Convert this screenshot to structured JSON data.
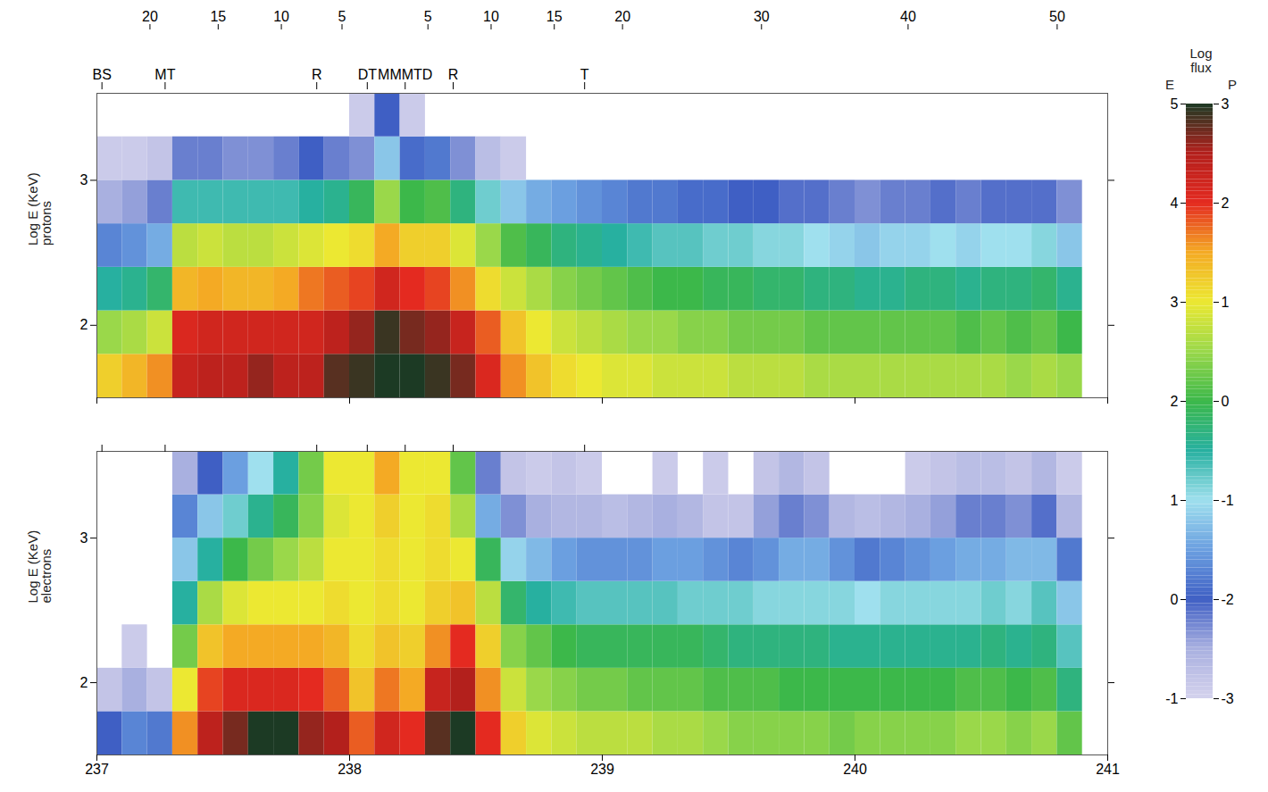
{
  "chart_data": [
    {
      "type": "heatmap",
      "ylabel": "Log E (KeV)",
      "species": "protons",
      "color_scale": "P",
      "xlim": [
        237,
        241
      ],
      "xticks": [
        237,
        238,
        239,
        240,
        241
      ],
      "tick_labels": "y",
      "ylim": [
        1.5,
        3.6
      ],
      "yticks": [
        2,
        3
      ],
      "x_bins": [
        237,
        237.1,
        237.2,
        237.3,
        237.4,
        237.5,
        237.6,
        237.7,
        237.8,
        237.9,
        238,
        238.1,
        238.2,
        238.3,
        238.4,
        238.5,
        238.6,
        238.7,
        238.8,
        238.9,
        239,
        239.1,
        239.2,
        239.3,
        239.4,
        239.5,
        239.6,
        239.7,
        239.8,
        239.9,
        240,
        240.1,
        240.2,
        240.3,
        240.4,
        240.5,
        240.6,
        240.7,
        240.8,
        240.9,
        241
      ],
      "y_bins": [
        1.5,
        1.8,
        2.1,
        2.4,
        2.7,
        3.0,
        3.3,
        3.6
      ],
      "cells": [
        [
          1.2,
          1.4,
          1.6,
          2.3,
          2.4,
          2.4,
          2.6,
          2.4,
          2.4,
          2.8,
          2.9,
          3.0,
          3.0,
          2.9,
          2.7,
          2.1,
          1.6,
          1.3,
          1.1,
          1.0,
          0.9,
          0.9,
          0.8,
          0.8,
          0.8,
          0.7,
          0.7,
          0.7,
          0.6,
          0.6,
          0.6,
          0.6,
          0.6,
          0.6,
          0.6,
          0.6,
          0.5,
          0.6,
          0.5,
          null
        ],
        [
          0.5,
          0.6,
          0.8,
          2.1,
          2.2,
          2.2,
          2.2,
          2.2,
          2.2,
          2.4,
          2.6,
          2.9,
          2.7,
          2.6,
          2.3,
          1.8,
          1.3,
          1.0,
          0.8,
          0.7,
          0.6,
          0.5,
          0.5,
          0.4,
          0.4,
          0.3,
          0.3,
          0.3,
          0.2,
          0.2,
          0.2,
          0.2,
          0.2,
          0.2,
          0.1,
          0.2,
          0.1,
          0.2,
          0.0,
          null
        ],
        [
          -0.5,
          -0.4,
          -0.2,
          1.4,
          1.5,
          1.4,
          1.4,
          1.5,
          1.7,
          1.8,
          1.9,
          2.2,
          2.0,
          1.9,
          1.6,
          1.1,
          0.8,
          0.6,
          0.4,
          0.3,
          0.2,
          0.1,
          0.0,
          0.0,
          -0.1,
          -0.1,
          -0.2,
          -0.2,
          -0.3,
          -0.3,
          -0.4,
          -0.4,
          -0.3,
          -0.3,
          -0.4,
          -0.3,
          -0.3,
          -0.2,
          -0.4,
          null
        ],
        [
          -1.7,
          -1.6,
          -1.4,
          0.7,
          0.8,
          0.7,
          0.7,
          0.8,
          0.9,
          1.0,
          1.1,
          1.5,
          1.2,
          1.2,
          0.9,
          0.5,
          0.1,
          -0.1,
          -0.3,
          -0.4,
          -0.5,
          -0.6,
          -0.7,
          -0.7,
          -0.8,
          -0.8,
          -0.9,
          -0.9,
          -1.0,
          -1.1,
          -1.2,
          -1.1,
          -1.1,
          -1.0,
          -1.1,
          -1.0,
          -1.0,
          -0.9,
          -1.2,
          null
        ],
        [
          -2.5,
          -2.4,
          -2.2,
          -0.6,
          -0.6,
          -0.6,
          -0.6,
          -0.6,
          -0.5,
          -0.4,
          -0.1,
          0.5,
          0.0,
          0.1,
          -0.3,
          -0.8,
          -1.2,
          -1.4,
          -1.5,
          -1.6,
          -1.7,
          -1.8,
          -1.8,
          -1.9,
          -1.9,
          -2.0,
          -2.0,
          -2.1,
          -2.1,
          -2.2,
          -2.3,
          -2.2,
          -2.2,
          -2.1,
          -2.2,
          -2.1,
          -2.1,
          -2.1,
          -2.3,
          null
        ],
        [
          -2.9,
          -2.9,
          -2.8,
          -2.2,
          -2.2,
          -2.3,
          -2.3,
          -2.2,
          -2.0,
          -2.2,
          -2.3,
          -1.2,
          -1.9,
          -1.8,
          -2.3,
          -2.7,
          -2.9,
          null,
          null,
          null,
          null,
          null,
          null,
          null,
          null,
          null,
          null,
          null,
          null,
          null,
          null,
          null,
          null,
          null,
          null,
          null,
          null,
          null,
          null,
          null
        ],
        [
          null,
          null,
          null,
          null,
          null,
          null,
          null,
          null,
          null,
          null,
          -2.9,
          -2.0,
          -2.9,
          null,
          null,
          null,
          null,
          null,
          null,
          null,
          null,
          null,
          null,
          null,
          null,
          null,
          null,
          null,
          null,
          null,
          null,
          null,
          null,
          null,
          null,
          null,
          null,
          null,
          null,
          null
        ]
      ]
    },
    {
      "type": "heatmap",
      "ylabel": "Log E (KeV)",
      "species": "electrons",
      "color_scale": "E",
      "xlim": [
        237,
        241
      ],
      "xticks": [
        237,
        238,
        239,
        240,
        241
      ],
      "ylim": [
        1.5,
        3.6
      ],
      "yticks": [
        2,
        3
      ],
      "x_bins": [
        237,
        237.1,
        237.2,
        237.3,
        237.4,
        237.5,
        237.6,
        237.7,
        237.8,
        237.9,
        238,
        238.1,
        238.2,
        238.3,
        238.4,
        238.5,
        238.6,
        238.7,
        238.8,
        238.9,
        239,
        239.1,
        239.2,
        239.3,
        239.4,
        239.5,
        239.6,
        239.7,
        239.8,
        239.9,
        240,
        240.1,
        240.2,
        240.3,
        240.4,
        240.5,
        240.6,
        240.7,
        240.8,
        240.9,
        241
      ],
      "y_bins": [
        1.5,
        1.8,
        2.1,
        2.4,
        2.7,
        3.0,
        3.3,
        3.6
      ],
      "cells": [
        [
          0.0,
          0.3,
          0.2,
          3.6,
          4.4,
          4.7,
          5.0,
          5.0,
          4.6,
          4.5,
          3.8,
          4.2,
          4.0,
          4.8,
          5.0,
          4.0,
          3.2,
          2.9,
          2.8,
          2.7,
          2.7,
          2.7,
          2.6,
          2.6,
          2.5,
          2.4,
          2.4,
          2.4,
          2.4,
          2.3,
          2.4,
          2.4,
          2.4,
          2.4,
          2.5,
          2.5,
          2.4,
          2.5,
          2.2,
          null
        ],
        [
          -0.8,
          -0.5,
          -0.8,
          3.0,
          3.9,
          4.1,
          4.1,
          4.1,
          4.0,
          3.8,
          3.3,
          3.7,
          3.5,
          4.3,
          4.5,
          3.6,
          2.8,
          2.5,
          2.4,
          2.3,
          2.3,
          2.2,
          2.2,
          2.2,
          2.1,
          2.1,
          2.1,
          2.0,
          2.0,
          2.0,
          2.0,
          2.0,
          2.0,
          2.0,
          2.1,
          2.1,
          2.0,
          2.1,
          1.7,
          null
        ],
        [
          null,
          -0.9,
          null,
          2.3,
          3.3,
          3.5,
          3.5,
          3.5,
          3.5,
          3.4,
          3.1,
          3.3,
          3.2,
          3.6,
          4.0,
          3.2,
          2.4,
          2.2,
          2.0,
          1.9,
          1.9,
          1.9,
          1.9,
          1.9,
          1.8,
          1.7,
          1.7,
          1.7,
          1.7,
          1.6,
          1.6,
          1.6,
          1.6,
          1.6,
          1.6,
          1.7,
          1.6,
          1.7,
          1.3,
          null
        ],
        [
          null,
          null,
          null,
          1.5,
          2.6,
          2.9,
          3.0,
          3.0,
          3.0,
          3.1,
          3.0,
          3.1,
          3.0,
          3.2,
          3.3,
          2.7,
          1.8,
          1.5,
          1.4,
          1.3,
          1.3,
          1.3,
          1.3,
          1.2,
          1.2,
          1.2,
          1.1,
          1.1,
          1.1,
          1.1,
          1.0,
          1.1,
          1.1,
          1.1,
          1.1,
          1.2,
          1.1,
          1.3,
          0.8,
          null
        ],
        [
          null,
          null,
          null,
          0.8,
          1.5,
          2.0,
          2.3,
          2.5,
          2.7,
          3.0,
          3.0,
          3.1,
          3.0,
          3.1,
          3.0,
          1.9,
          0.9,
          0.7,
          0.5,
          0.4,
          0.4,
          0.4,
          0.5,
          0.5,
          0.4,
          0.3,
          0.4,
          0.6,
          0.6,
          0.4,
          0.2,
          0.3,
          0.4,
          0.5,
          0.6,
          0.6,
          0.7,
          0.7,
          0.2,
          null
        ],
        [
          null,
          null,
          null,
          0.3,
          0.8,
          1.2,
          1.6,
          1.9,
          2.4,
          2.9,
          3.0,
          3.2,
          3.0,
          3.1,
          2.6,
          0.6,
          -0.3,
          -0.5,
          -0.6,
          -0.6,
          -0.7,
          -0.6,
          -0.5,
          -0.6,
          -0.8,
          -0.8,
          -0.4,
          -0.2,
          -0.3,
          -0.6,
          -0.7,
          -0.6,
          -0.5,
          -0.4,
          -0.2,
          -0.2,
          -0.3,
          -0.1,
          -0.6,
          null
        ],
        [
          null,
          null,
          null,
          -0.5,
          0.0,
          0.5,
          1.0,
          1.5,
          2.3,
          3.0,
          3.0,
          3.5,
          3.0,
          3.0,
          2.2,
          -0.2,
          -0.8,
          -0.9,
          -0.8,
          -0.9,
          null,
          null,
          -0.9,
          null,
          -0.9,
          null,
          -0.8,
          -0.6,
          -0.8,
          null,
          null,
          null,
          -0.9,
          -0.8,
          -0.7,
          -0.7,
          -0.8,
          -0.6,
          -0.9,
          null
        ]
      ]
    }
  ],
  "distance_ticks": [
    {
      "value": 237.21,
      "label": "20"
    },
    {
      "value": 237.48,
      "label": "15"
    },
    {
      "value": 237.73,
      "label": "10"
    },
    {
      "value": 237.97,
      "label": "5"
    },
    {
      "value": 238.31,
      "label": "5"
    },
    {
      "value": 238.56,
      "label": "10"
    },
    {
      "value": 238.81,
      "label": "15"
    },
    {
      "value": 239.08,
      "label": "20"
    },
    {
      "value": 239.63,
      "label": "30"
    },
    {
      "value": 240.21,
      "label": "40"
    },
    {
      "value": 240.8,
      "label": "50"
    }
  ],
  "region_ticks": [
    {
      "value": 237.02,
      "label": "BS"
    },
    {
      "value": 237.27,
      "label": "MT"
    },
    {
      "value": 237.87,
      "label": "R"
    },
    {
      "value": 238.07,
      "label": "DT"
    },
    {
      "value": 238.22,
      "label": "MMMTD"
    },
    {
      "value": 238.41,
      "label": "R"
    },
    {
      "value": 238.93,
      "label": "T"
    }
  ],
  "color_bar": {
    "title": "Log flux",
    "scales": [
      {
        "label": "E",
        "range": [
          -1,
          5
        ],
        "ticks": [
          -1,
          0,
          1,
          2,
          3,
          4,
          5
        ]
      },
      {
        "label": "P",
        "range": [
          -3,
          3
        ],
        "ticks": [
          -3,
          -2,
          -1,
          0,
          1,
          2,
          3
        ]
      }
    ],
    "colors": [
      "#d4d2ec",
      "#a9b0e0",
      "#3f5fc4",
      "#6b9fe0",
      "#9fe0ee",
      "#27b0a0",
      "#3cb84a",
      "#9ad84a",
      "#ece832",
      "#f4aa24",
      "#e42a20",
      "#b3201c",
      "#1c3a24"
    ]
  }
}
